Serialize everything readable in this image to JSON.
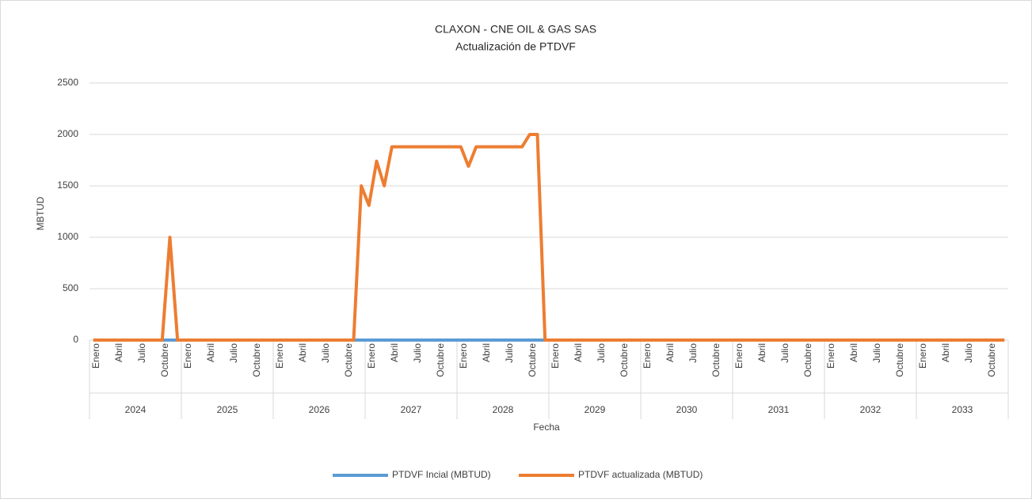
{
  "chart_data": {
    "type": "line",
    "title": "CLAXON - CNE OIL & GAS SAS",
    "subtitle": "Actualización de PTDVF",
    "ylabel": "MBTUD",
    "xlabel": "Fecha",
    "year_groups": [
      "2024",
      "2025",
      "2026",
      "2027",
      "2028",
      "2029",
      "2030",
      "2031",
      "2032",
      "2033"
    ],
    "categories": [
      "Enero",
      null,
      null,
      "Abril",
      null,
      null,
      "Julio",
      null,
      null,
      "Octubre",
      null,
      null,
      "Enero",
      null,
      null,
      "Abril",
      null,
      null,
      "Julio",
      null,
      null,
      "Octubre",
      null,
      null,
      "Enero",
      null,
      null,
      "Abril",
      null,
      null,
      "Julio",
      null,
      null,
      "Octubre",
      null,
      null,
      "Enero",
      null,
      null,
      "Abril",
      null,
      null,
      "Julio",
      null,
      null,
      "Octubre",
      null,
      null,
      "Enero",
      null,
      null,
      "Abril",
      null,
      null,
      "Julio",
      null,
      null,
      "Octubre",
      null,
      null,
      "Enero",
      null,
      null,
      "Abril",
      null,
      null,
      "Julio",
      null,
      null,
      "Octubre",
      null,
      null,
      "Enero",
      null,
      null,
      "Abril",
      null,
      null,
      "Julio",
      null,
      null,
      "Octubre",
      null,
      null,
      "Enero",
      null,
      null,
      "Abril",
      null,
      null,
      "Julio",
      null,
      null,
      "Octubre",
      null,
      null,
      "Enero",
      null,
      null,
      "Abril",
      null,
      null,
      "Julio",
      null,
      null,
      "Octubre",
      null,
      null,
      "Enero",
      null,
      null,
      "Abril",
      null,
      null,
      "Julio",
      null,
      null,
      "Octubre",
      null,
      null
    ],
    "series": [
      {
        "name": "PTDVF Incial (MBTUD)",
        "color": "#5b9bd5",
        "values": [
          0,
          0,
          0,
          0,
          0,
          0,
          0,
          0,
          0,
          0,
          0,
          0,
          0,
          0,
          0,
          0,
          0,
          0,
          0,
          0,
          0,
          0,
          0,
          0,
          0,
          0,
          0,
          0,
          0,
          0,
          0,
          0,
          0,
          0,
          0,
          0,
          0,
          0,
          0,
          0,
          0,
          0,
          0,
          0,
          0,
          0,
          0,
          0,
          0,
          0,
          0,
          0,
          0,
          0,
          0,
          0,
          0,
          0,
          0,
          0,
          0,
          0,
          0,
          0,
          0,
          0,
          0,
          0,
          0,
          0,
          0,
          0,
          0,
          0,
          0,
          0,
          0,
          0,
          0,
          0,
          0,
          0,
          0,
          0,
          0,
          0,
          0,
          0,
          0,
          0,
          0,
          0,
          0,
          0,
          0,
          0,
          0,
          0,
          0,
          0,
          0,
          0,
          0,
          0,
          0,
          0,
          0,
          0,
          0,
          0,
          0,
          0,
          0,
          0,
          0,
          0,
          0,
          0,
          0,
          0
        ]
      },
      {
        "name": "PTDVF actualizada (MBTUD)",
        "color": "#ed7d31",
        "values": [
          0,
          0,
          0,
          0,
          0,
          0,
          0,
          0,
          0,
          0,
          1000,
          0,
          0,
          0,
          0,
          0,
          0,
          0,
          0,
          0,
          0,
          0,
          0,
          0,
          0,
          0,
          0,
          0,
          0,
          0,
          0,
          0,
          0,
          0,
          0,
          1500,
          1310,
          1740,
          1500,
          1880,
          1880,
          1880,
          1880,
          1880,
          1880,
          1880,
          1880,
          1880,
          1880,
          1690,
          1880,
          1880,
          1880,
          1880,
          1880,
          1880,
          1880,
          2000,
          2000,
          0,
          0,
          0,
          0,
          0,
          0,
          0,
          0,
          0,
          0,
          0,
          0,
          0,
          0,
          0,
          0,
          0,
          0,
          0,
          0,
          0,
          0,
          0,
          0,
          0,
          0,
          0,
          0,
          0,
          0,
          0,
          0,
          0,
          0,
          0,
          0,
          0,
          0,
          0,
          0,
          0,
          0,
          0,
          0,
          0,
          0,
          0,
          0,
          0,
          0,
          0,
          0,
          0,
          0,
          0,
          0,
          0,
          0,
          0,
          0,
          0
        ]
      }
    ],
    "ylim": [
      0,
      2500
    ],
    "yticks": [
      0,
      500,
      1000,
      1500,
      2000,
      2500
    ],
    "grid": true
  }
}
